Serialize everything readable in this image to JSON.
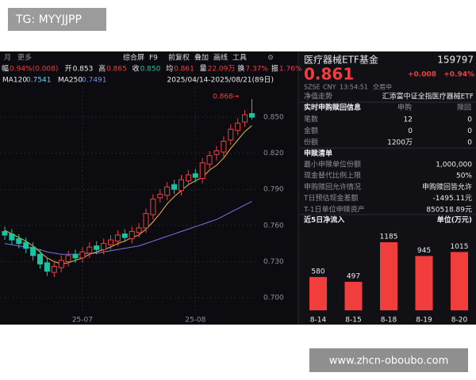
{
  "watermark_top": "TG: MYYJJPP",
  "watermark_bottom": "www.zhcn-oboubo.com",
  "kline": {
    "toolbar_left": [
      "月",
      "更多"
    ],
    "toolbar_right": [
      "综合屏",
      "F9",
      "前复权",
      "叠加",
      "画线",
      "工具"
    ],
    "quote_items": [
      {
        "label": "幅",
        "value": "0.94%(0.008)"
      },
      {
        "label": "开",
        "value": "0.853"
      },
      {
        "label": "高",
        "value": "0.865"
      },
      {
        "label": "收",
        "value": "0.850"
      },
      {
        "label": "均",
        "value": "0.861"
      },
      {
        "label": "量",
        "value": "22.09万"
      },
      {
        "label": "换",
        "value": "7.37%"
      },
      {
        "label": "振",
        "value": "1.76%"
      }
    ],
    "ma_items": [
      {
        "label": "MA120",
        "value": "0.7541"
      },
      {
        "label": "MA250",
        "value": "0.7491"
      }
    ],
    "date_range": "2025/04/14-2025/08/21(89日)",
    "annotation": "0.868→",
    "ylim": [
      0.6875,
      0.875
    ],
    "yticks": [
      {
        "value": 0.85,
        "label": "0.850"
      },
      {
        "value": 0.82,
        "label": "0.820"
      },
      {
        "value": 0.79,
        "label": "0.790"
      },
      {
        "value": 0.76,
        "label": "0.760"
      },
      {
        "value": 0.73,
        "label": "0.730"
      },
      {
        "value": 0.7,
        "label": "0.700"
      }
    ],
    "categories": [
      null,
      null,
      null,
      null,
      null,
      null,
      null,
      null,
      null,
      null,
      null,
      "25-07",
      null,
      null,
      null,
      null,
      null,
      null,
      null,
      null,
      null,
      null,
      null,
      null,
      null,
      null,
      null,
      "25-08",
      null,
      null,
      null,
      null,
      null,
      null,
      null,
      null
    ],
    "open": [
      0.755,
      0.753,
      0.749,
      0.746,
      0.742,
      0.736,
      0.729,
      0.721,
      0.725,
      0.73,
      0.736,
      0.733,
      0.737,
      0.743,
      0.74,
      0.744,
      0.747,
      0.753,
      0.749,
      0.754,
      0.758,
      0.769,
      0.783,
      0.785,
      0.794,
      0.789,
      0.797,
      0.803,
      0.799,
      0.811,
      0.819,
      0.821,
      0.831,
      0.839,
      0.846,
      0.853
    ],
    "high": [
      0.759,
      0.757,
      0.753,
      0.75,
      0.746,
      0.74,
      0.733,
      0.73,
      0.735,
      0.739,
      0.74,
      0.742,
      0.746,
      0.747,
      0.749,
      0.752,
      0.756,
      0.757,
      0.759,
      0.762,
      0.774,
      0.786,
      0.79,
      0.796,
      0.798,
      0.802,
      0.806,
      0.807,
      0.816,
      0.822,
      0.826,
      0.834,
      0.844,
      0.849,
      0.856,
      0.865
    ],
    "low": [
      0.748,
      0.744,
      0.741,
      0.737,
      0.731,
      0.724,
      0.718,
      0.717,
      0.721,
      0.726,
      0.729,
      0.729,
      0.733,
      0.736,
      0.736,
      0.74,
      0.743,
      0.746,
      0.745,
      0.75,
      0.754,
      0.765,
      0.779,
      0.781,
      0.786,
      0.785,
      0.793,
      0.796,
      0.795,
      0.807,
      0.814,
      0.817,
      0.827,
      0.835,
      0.842,
      0.848
    ],
    "close": [
      0.752,
      0.748,
      0.745,
      0.741,
      0.735,
      0.728,
      0.722,
      0.726,
      0.731,
      0.735,
      0.733,
      0.738,
      0.742,
      0.74,
      0.745,
      0.748,
      0.752,
      0.75,
      0.755,
      0.758,
      0.77,
      0.782,
      0.786,
      0.792,
      0.79,
      0.798,
      0.802,
      0.8,
      0.812,
      0.818,
      0.822,
      0.83,
      0.84,
      0.845,
      0.852,
      0.85
    ],
    "ma_short": [
      0.756,
      0.753,
      0.75,
      0.747,
      0.743,
      0.738,
      0.733,
      0.73,
      0.728,
      0.729,
      0.731,
      0.733,
      0.736,
      0.738,
      0.74,
      0.742,
      0.745,
      0.747,
      0.75,
      0.752,
      0.757,
      0.763,
      0.77,
      0.778,
      0.784,
      0.789,
      0.794,
      0.797,
      0.8,
      0.806,
      0.81,
      0.816,
      0.824,
      0.831,
      0.838,
      0.843
    ],
    "ma_long": [
      0.745,
      0.744,
      0.743,
      0.742,
      0.741,
      0.74,
      0.738,
      0.737,
      0.736,
      0.736,
      0.736,
      0.736,
      0.737,
      0.737,
      0.738,
      0.739,
      0.74,
      0.741,
      0.742,
      0.743,
      0.745,
      0.747,
      0.749,
      0.751,
      0.753,
      0.755,
      0.757,
      0.759,
      0.761,
      0.763,
      0.765,
      0.768,
      0.771,
      0.774,
      0.777,
      0.78
    ]
  },
  "panel": {
    "name": "医疗器械ETF基金",
    "code": "159797",
    "price": "0.861",
    "change": "+0.008",
    "change_pct": "+0.94%",
    "status": [
      "SZSE",
      "CNY",
      "13:54:51",
      "交易中"
    ],
    "nav_label": "净值走势",
    "fund_full": "汇添富中证全指医疗器械ETF",
    "realtime": {
      "title": "实时申购赎回信息",
      "headers": [
        "申购",
        "赎回"
      ],
      "rows": [
        [
          "笔数",
          "12",
          "0"
        ],
        [
          "金额",
          "0",
          "0"
        ],
        [
          "份额",
          "1200万",
          "0"
        ]
      ]
    },
    "list": {
      "title": "申赎清单",
      "rows": [
        [
          "最小申赎单位份额",
          "1,000,000"
        ],
        [
          "现金替代比例上限",
          "50%"
        ],
        [
          "申购赎回允许情况",
          "申购赎回皆允许"
        ],
        [
          "T日预估现金差额",
          "-1495.11元"
        ],
        [
          "T-1日单位申赎资产",
          "850518.89元"
        ]
      ]
    }
  },
  "flow": {
    "title": "近5日净流入",
    "unit": "单位(万元)",
    "categories": [
      "8-14",
      "8-15",
      "8-18",
      "8-19",
      "8-20"
    ],
    "values": [
      580,
      497,
      1185,
      945,
      1015
    ]
  }
}
